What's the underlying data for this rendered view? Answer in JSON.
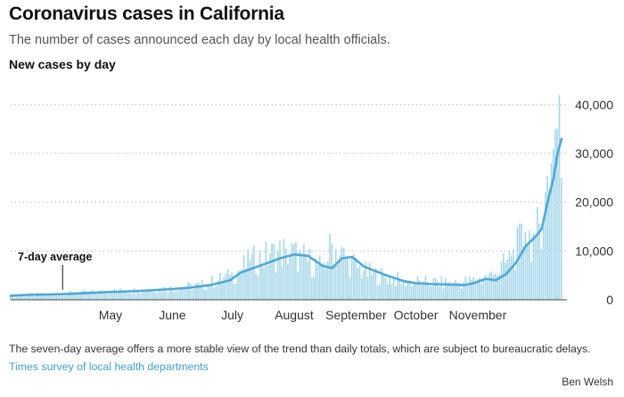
{
  "header": {
    "title": "Coronavirus cases in California",
    "subtitle": "The number of cases announced each day by local health officials.",
    "section_label": "New cases by day"
  },
  "footer": {
    "note": "The seven-day average offers a more stable view of the trend than daily totals, which are subject to bureaucratic delays.",
    "source": "Times survey of local health departments",
    "credit": "Ben Welsh"
  },
  "colors": {
    "bar": "#a8d8ea",
    "line": "#4fa8d6",
    "grid": "#bbbbbb",
    "axis": "#444444"
  },
  "chart_data": {
    "type": "bar",
    "title": "New cases by day",
    "xlabel": "",
    "ylabel": "",
    "ylim": [
      0,
      45000
    ],
    "xlim": [
      "2020-03-12",
      "2020-12-13"
    ],
    "y_ticks": [
      0,
      10000,
      20000,
      30000,
      40000
    ],
    "y_tick_labels": [
      "0",
      "10,000",
      "20,000",
      "30,000",
      "40,000"
    ],
    "x_tick_labels": [
      {
        "label": "May",
        "date": "2020-05-01"
      },
      {
        "label": "June",
        "date": "2020-06-01"
      },
      {
        "label": "July",
        "date": "2020-07-01"
      },
      {
        "label": "August",
        "date": "2020-08-01"
      },
      {
        "label": "September",
        "date": "2020-09-01"
      },
      {
        "label": "October",
        "date": "2020-10-01"
      },
      {
        "label": "November",
        "date": "2020-11-01"
      }
    ],
    "grid": true,
    "annotation": {
      "text": "7-day average",
      "date": "2020-04-07"
    },
    "series": [
      {
        "type": "line",
        "points": [
          [
            "2020-03-12",
            800
          ],
          [
            "2020-03-20",
            1000
          ],
          [
            "2020-04-01",
            1100
          ],
          [
            "2020-04-10",
            1200
          ],
          [
            "2020-04-20",
            1400
          ],
          [
            "2020-05-01",
            1600
          ],
          [
            "2020-05-15",
            1800
          ],
          [
            "2020-06-01",
            2200
          ],
          [
            "2020-06-10",
            2500
          ],
          [
            "2020-06-20",
            3000
          ],
          [
            "2020-06-30",
            4000
          ],
          [
            "2020-07-05",
            5500
          ],
          [
            "2020-07-15",
            7000
          ],
          [
            "2020-07-25",
            8500
          ],
          [
            "2020-08-01",
            9300
          ],
          [
            "2020-08-08",
            9000
          ],
          [
            "2020-08-15",
            7000
          ],
          [
            "2020-08-20",
            6500
          ],
          [
            "2020-08-25",
            8500
          ],
          [
            "2020-08-30",
            8800
          ],
          [
            "2020-09-05",
            6800
          ],
          [
            "2020-09-15",
            5200
          ],
          [
            "2020-09-25",
            3800
          ],
          [
            "2020-10-01",
            3400
          ],
          [
            "2020-10-10",
            3200
          ],
          [
            "2020-10-20",
            3100
          ],
          [
            "2020-10-25",
            3000
          ],
          [
            "2020-10-30",
            3400
          ],
          [
            "2020-11-05",
            4300
          ],
          [
            "2020-11-10",
            4000
          ],
          [
            "2020-11-15",
            5200
          ],
          [
            "2020-11-20",
            7500
          ],
          [
            "2020-11-25",
            11000
          ],
          [
            "2020-11-30",
            13000
          ],
          [
            "2020-12-03",
            14500
          ],
          [
            "2020-12-06",
            20000
          ],
          [
            "2020-12-09",
            25000
          ],
          [
            "2020-12-11",
            30000
          ],
          [
            "2020-12-13",
            33000
          ]
        ]
      },
      {
        "type": "bar",
        "anchors": [
          [
            "2020-03-12",
            800
          ],
          [
            "2020-04-01",
            1200
          ],
          [
            "2020-04-20",
            1500
          ],
          [
            "2020-05-01",
            1800
          ],
          [
            "2020-05-15",
            2000
          ],
          [
            "2020-06-01",
            2500
          ],
          [
            "2020-06-15",
            3000
          ],
          [
            "2020-06-30",
            5000
          ],
          [
            "2020-07-10",
            8000
          ],
          [
            "2020-07-20",
            9500
          ],
          [
            "2020-07-28",
            10500
          ],
          [
            "2020-08-05",
            9000
          ],
          [
            "2020-08-15",
            7000
          ],
          [
            "2020-08-20",
            11500
          ],
          [
            "2020-08-28",
            8500
          ],
          [
            "2020-09-05",
            6000
          ],
          [
            "2020-09-15",
            5000
          ],
          [
            "2020-09-25",
            4000
          ],
          [
            "2020-10-05",
            3800
          ],
          [
            "2020-10-20",
            3500
          ],
          [
            "2020-11-01",
            4200
          ],
          [
            "2020-11-10",
            5500
          ],
          [
            "2020-11-18",
            9000
          ],
          [
            "2020-11-25",
            14000
          ],
          [
            "2020-11-30",
            13000
          ],
          [
            "2020-12-05",
            22000
          ],
          [
            "2020-12-08",
            28000
          ],
          [
            "2020-12-10",
            35000
          ],
          [
            "2020-12-11",
            35000
          ],
          [
            "2020-12-12",
            42000
          ],
          [
            "2020-12-13",
            25000
          ]
        ]
      }
    ]
  }
}
